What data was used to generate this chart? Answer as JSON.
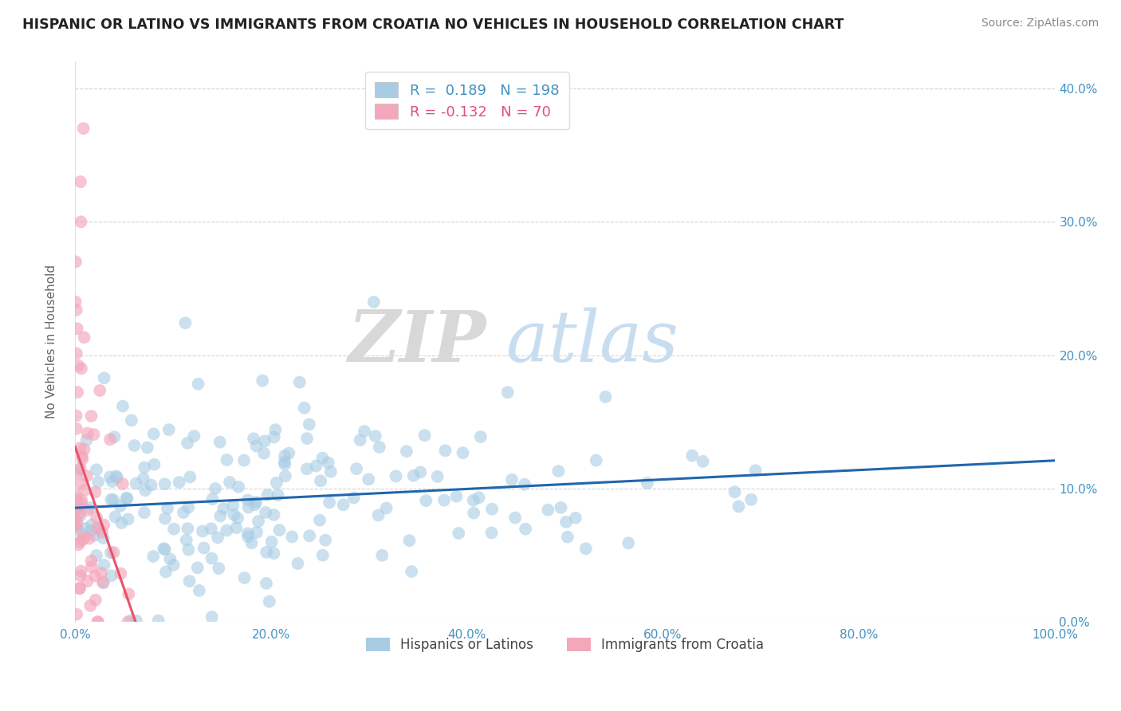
{
  "title": "HISPANIC OR LATINO VS IMMIGRANTS FROM CROATIA NO VEHICLES IN HOUSEHOLD CORRELATION CHART",
  "source": "Source: ZipAtlas.com",
  "ylabel": "No Vehicles in Household",
  "legend_labels": [
    "Hispanics or Latinos",
    "Immigrants from Croatia"
  ],
  "r_blue": 0.189,
  "n_blue": 198,
  "r_pink": -0.132,
  "n_pink": 70,
  "xlim": [
    0,
    1.0
  ],
  "ylim": [
    0,
    0.42
  ],
  "xticks": [
    0.0,
    0.2,
    0.4,
    0.6,
    0.8,
    1.0
  ],
  "xtick_labels": [
    "0.0%",
    "20.0%",
    "40.0%",
    "60.0%",
    "80.0%",
    "100.0%"
  ],
  "yticks": [
    0.0,
    0.1,
    0.2,
    0.3,
    0.4
  ],
  "ytick_labels": [
    "0.0%",
    "10.0%",
    "20.0%",
    "30.0%",
    "40.0%"
  ],
  "blue_color": "#a8cce4",
  "pink_color": "#f4a7bb",
  "blue_line_color": "#2166ac",
  "pink_line_color": "#e8536a",
  "grid_color": "#c8c8c8",
  "title_color": "#222222",
  "axis_color": "#4393c3",
  "watermark_zip_color": "#d8d8d8",
  "watermark_atlas_color": "#c8ddf0",
  "watermark_text_zip": "ZIP",
  "watermark_text_atlas": "atlas",
  "background_color": "#ffffff",
  "legend_r_color_blue": "#4393c3",
  "legend_r_color_pink": "#e0507a",
  "legend_box_color": "#dddddd"
}
